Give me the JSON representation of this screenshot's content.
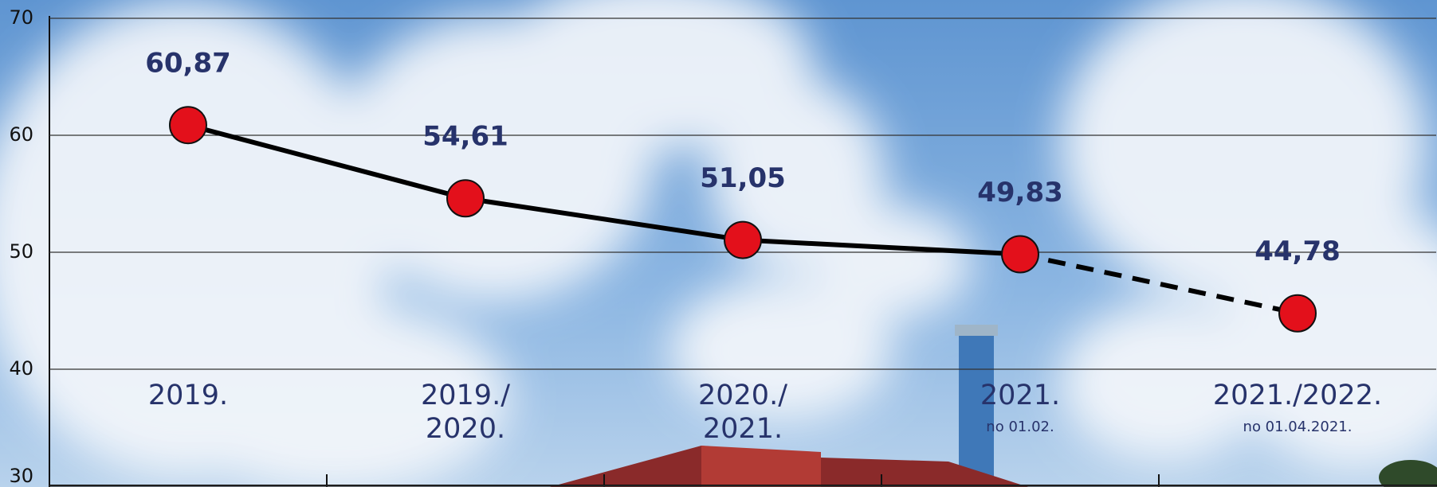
{
  "chart_data": {
    "type": "line",
    "categories": [
      [
        "2019."
      ],
      [
        "2019./",
        "2020."
      ],
      [
        "2020./",
        "2021."
      ],
      [
        "2021."
      ],
      [
        "2021./2022."
      ]
    ],
    "category_notes": [
      null,
      null,
      null,
      "no 01.02.",
      "no 01.04.2021."
    ],
    "values": [
      60.87,
      54.61,
      51.05,
      49.83,
      44.78
    ],
    "value_labels": [
      "60,87",
      "54,61",
      "51,05",
      "49,83",
      "44,78"
    ],
    "dashed_from_index": 3,
    "line_color": "#000000",
    "marker_color": "#e3101b",
    "label_color": "#27336b",
    "ylim": [
      30,
      70
    ],
    "yticks": [
      30,
      40,
      50,
      60,
      70
    ],
    "grid": true
  }
}
